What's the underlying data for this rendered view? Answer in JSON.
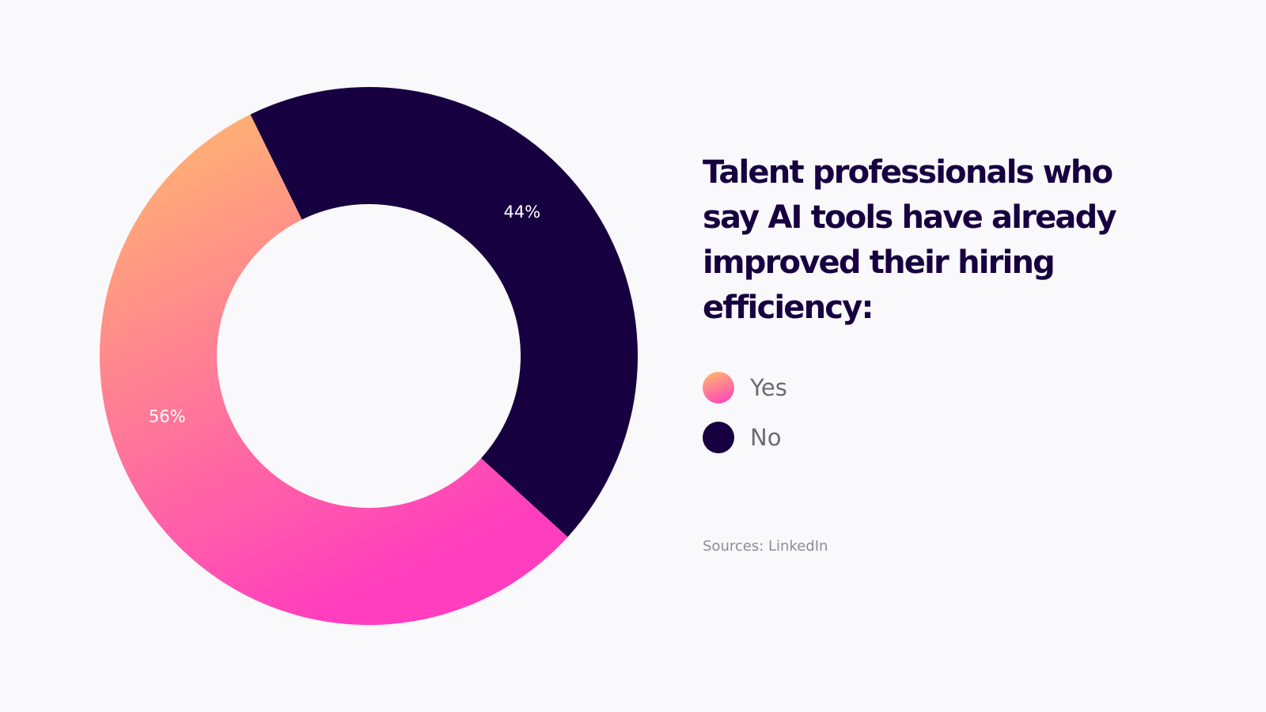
{
  "chart_data": {
    "type": "pie",
    "variant": "donut",
    "title": "Talent professionals who say AI tools have already improved their hiring efficiency:",
    "slices": [
      {
        "name": "Yes",
        "value": 56,
        "label": "56%",
        "gradient": [
          "#ffbd6b",
          "#ff3dbf"
        ]
      },
      {
        "name": "No",
        "value": 44,
        "label": "44%",
        "color": "#170040"
      }
    ],
    "legend": {
      "position": "right"
    },
    "source": "Sources: LinkedIn"
  }
}
